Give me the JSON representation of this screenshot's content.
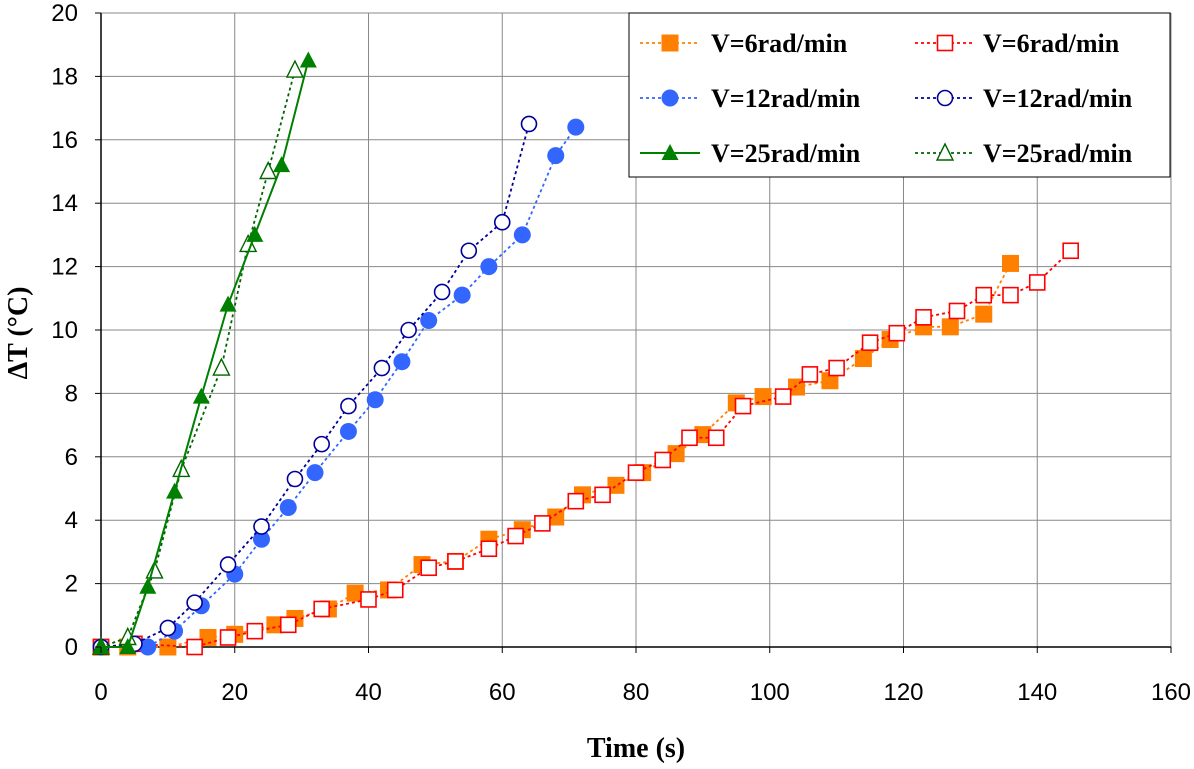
{
  "chart_data": {
    "type": "scatter",
    "title": "",
    "xlabel": "Time (s)",
    "ylabel": "ΔT (°C)",
    "xlim": [
      0,
      160
    ],
    "ylim": [
      0,
      20
    ],
    "xticks": [
      "0",
      "20",
      "40",
      "60",
      "80",
      "100",
      "120",
      "140",
      "160"
    ],
    "yticks": [
      "0",
      "2",
      "4",
      "6",
      "8",
      "10",
      "12",
      "14",
      "16",
      "18",
      "20"
    ],
    "grid": true,
    "legend_position": "top-right",
    "series": [
      {
        "name": "V=6rad/min",
        "color": "#FF8000",
        "marker": "square-filled",
        "line": "dotted",
        "x": [
          0,
          4,
          10,
          16,
          20,
          26,
          29,
          34,
          38,
          43,
          48,
          53,
          58,
          63,
          68,
          72,
          77,
          81,
          86,
          90,
          95,
          99,
          104,
          109,
          114,
          118,
          123,
          127,
          132,
          136
        ],
        "y": [
          0,
          0,
          0,
          0.3,
          0.4,
          0.7,
          0.9,
          1.2,
          1.7,
          1.8,
          2.6,
          2.7,
          3.4,
          3.7,
          4.1,
          4.8,
          5.1,
          5.5,
          6.1,
          6.7,
          7.7,
          7.9,
          8.2,
          8.4,
          9.1,
          9.7,
          10.1,
          10.1,
          10.5,
          12.1
        ]
      },
      {
        "name": "V=12rad/min",
        "color": "#3366FF",
        "marker": "circle-filled",
        "line": "dotted",
        "x": [
          0,
          7,
          11,
          15,
          20,
          24,
          28,
          32,
          37,
          41,
          45,
          49,
          54,
          58,
          63,
          68,
          71
        ],
        "y": [
          0,
          0,
          0.5,
          1.3,
          2.3,
          3.4,
          4.4,
          5.5,
          6.8,
          7.8,
          9.0,
          10.3,
          11.1,
          12.0,
          13.0,
          15.5,
          16.4
        ]
      },
      {
        "name": "V=25rad/min",
        "color": "#008000",
        "marker": "triangle-filled",
        "line": "solid",
        "x": [
          0,
          4,
          7,
          11,
          15,
          19,
          23,
          27,
          31
        ],
        "y": [
          0,
          0,
          1.9,
          4.9,
          7.9,
          10.8,
          13.0,
          15.2,
          18.5
        ]
      },
      {
        "name": "V=6rad/min",
        "color": "#FF0000",
        "marker": "square-open",
        "line": "dotted",
        "x": [
          0,
          5,
          14,
          19,
          23,
          28,
          33,
          40,
          44,
          49,
          53,
          58,
          62,
          66,
          71,
          75,
          80,
          84,
          88,
          92,
          96,
          102,
          106,
          110,
          115,
          119,
          123,
          128,
          132,
          136,
          140,
          145
        ],
        "y": [
          0,
          0.1,
          0,
          0.3,
          0.5,
          0.7,
          1.2,
          1.5,
          1.8,
          2.5,
          2.7,
          3.1,
          3.5,
          3.9,
          4.6,
          4.8,
          5.5,
          5.9,
          6.6,
          6.6,
          7.6,
          7.9,
          8.6,
          8.8,
          9.6,
          9.9,
          10.4,
          10.6,
          11.1,
          11.1,
          11.5,
          12.5
        ]
      },
      {
        "name": "V=12rad/min",
        "color": "#000099",
        "marker": "circle-open",
        "line": "dotted",
        "x": [
          0,
          5,
          10,
          14,
          19,
          24,
          29,
          33,
          37,
          42,
          46,
          51,
          55,
          60,
          64
        ],
        "y": [
          0,
          0.1,
          0.6,
          1.4,
          2.6,
          3.8,
          5.3,
          6.4,
          7.6,
          8.8,
          10.0,
          11.2,
          12.5,
          13.4,
          16.5
        ]
      },
      {
        "name": "V=25rad/min",
        "color": "#006400",
        "marker": "triangle-open",
        "line": "dotted",
        "x": [
          0,
          4,
          8,
          12,
          18,
          22,
          25,
          29
        ],
        "y": [
          0,
          0.3,
          2.4,
          5.6,
          8.8,
          12.7,
          15.0,
          18.2
        ]
      }
    ]
  }
}
